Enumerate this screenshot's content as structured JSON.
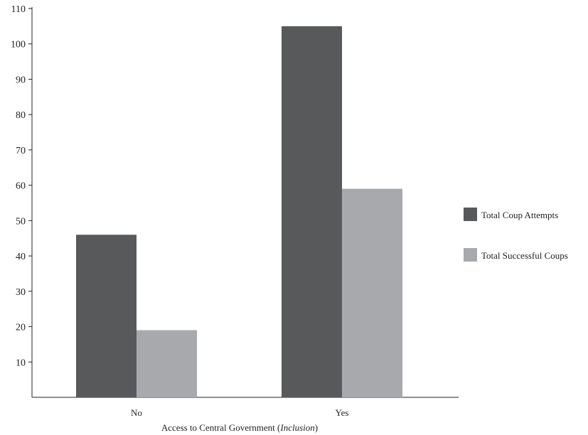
{
  "chart_data": {
    "type": "bar",
    "categories": [
      "No",
      "Yes"
    ],
    "series": [
      {
        "name": "Total Coup Attempts",
        "values": [
          46,
          105
        ],
        "color": "#58595b"
      },
      {
        "name": "Total Successful Coups",
        "values": [
          19,
          59
        ],
        "color": "#a7a9ac"
      }
    ],
    "xlabel": {
      "prefix": "Access to Central Government (",
      "emphasis": "Inclusion",
      "suffix": ")"
    },
    "ylabel": "",
    "ylim": [
      0,
      110
    ],
    "yticks": [
      10,
      20,
      30,
      40,
      50,
      60,
      70,
      80,
      90,
      100,
      110
    ],
    "grid": false,
    "legend_position": "right"
  }
}
